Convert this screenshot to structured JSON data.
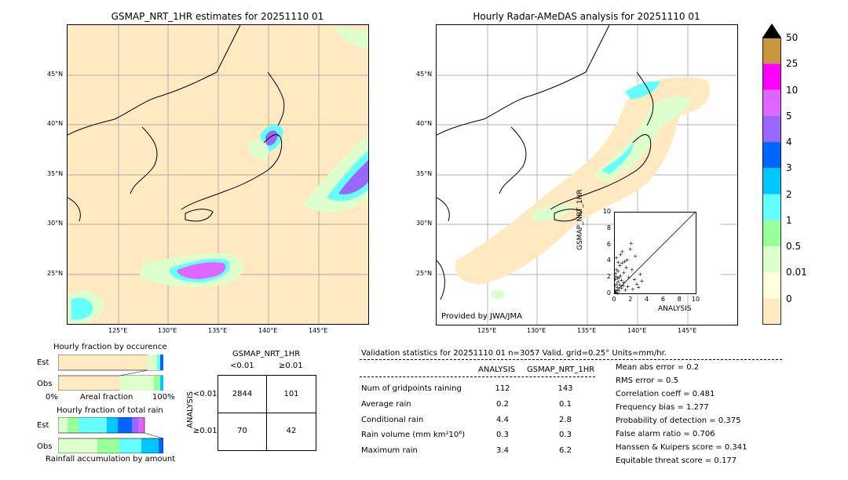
{
  "left_map": {
    "title": "GSMAP_NRT_1HR estimates for 20251110 01",
    "lat_labels": [
      "45°N",
      "40°N",
      "35°N",
      "30°N",
      "25°N"
    ],
    "lon_labels": [
      "125°E",
      "130°E",
      "135°E",
      "140°E",
      "145°E"
    ]
  },
  "right_map": {
    "title": "Hourly Radar-AMeDAS analysis for 20251110 01",
    "lat_labels": [
      "45°N",
      "40°N",
      "35°N",
      "30°N",
      "25°N"
    ],
    "lon_labels": [
      "125°E",
      "130°E",
      "135°E",
      "140°E",
      "145°E"
    ],
    "credit": "Provided by JWA/JMA"
  },
  "colorbar": {
    "labels": [
      "50",
      "25",
      "10",
      "5",
      "4",
      "3",
      "2",
      "1",
      "0.5",
      "0.01",
      "0"
    ],
    "colors": [
      "#c8963c",
      "#ff00ff",
      "#dd66ff",
      "#9966ff",
      "#0066ff",
      "#00c8ff",
      "#66ffff",
      "#99ff99",
      "#ddffcc",
      "#ffffdd",
      "#ffe9c0"
    ]
  },
  "occurrence": {
    "title": "Hourly fraction by occurence",
    "row_est": "Est",
    "row_obs": "Obs",
    "axis_left": "0%",
    "axis_mid": "Areal fraction",
    "axis_right": "100%"
  },
  "total_rain": {
    "title": "Hourly fraction of total rain",
    "row_est": "Est",
    "row_obs": "Obs",
    "footer": "Rainfall accumulation by amount"
  },
  "contingency": {
    "header": "GSMAP_NRT_1HR",
    "col_lt": "<0.01",
    "col_ge": "≥0.01",
    "row_axis": "ANALYSIS",
    "row_lt": "<0.01",
    "row_ge": "≥0.01",
    "c11": "2844",
    "c12": "101",
    "c21": "70",
    "c22": "42"
  },
  "validation": {
    "header": "Validation statistics for 20251110 01  n=3057 Valid. grid=0.25° Units=mm/hr.",
    "col_analysis": "ANALYSIS",
    "col_gsmap": "GSMAP_NRT_1HR",
    "rows": [
      {
        "label": "Num of gridpoints raining",
        "analysis": "112",
        "gsmap": "143"
      },
      {
        "label": "Average rain",
        "analysis": "0.2",
        "gsmap": "0.1"
      },
      {
        "label": "Conditional rain",
        "analysis": "4.4",
        "gsmap": "2.8"
      },
      {
        "label": "Rain volume (mm km²10⁶)",
        "analysis": "0.3",
        "gsmap": "0.3"
      },
      {
        "label": "Maximum rain",
        "analysis": "3.4",
        "gsmap": "6.2"
      }
    ],
    "scores": [
      "Mean abs error =    0.2",
      "RMS error =    0.5",
      "Correlation coeff =  0.481",
      "Frequency bias =  1.277",
      "Probability of detection =  0.375",
      "False alarm ratio =  0.706",
      "Hanssen & Kuipers score =  0.341",
      "Equitable threat score =  0.177"
    ]
  },
  "chart_data": {
    "type": "scatter",
    "xlabel": "ANALYSIS",
    "ylabel": "GSMAP_NRT_1HR",
    "xlim": [
      0,
      10
    ],
    "ylim": [
      0,
      10
    ],
    "xticks": [
      "0",
      "2",
      "4",
      "6",
      "8",
      "10"
    ],
    "yticks": [
      "0",
      "2",
      "4",
      "6",
      "8",
      "10"
    ],
    "points": [
      [
        0.1,
        0.3
      ],
      [
        0.2,
        0.5
      ],
      [
        0.3,
        1.2
      ],
      [
        0.4,
        0.8
      ],
      [
        0.5,
        1.5
      ],
      [
        0.6,
        2.0
      ],
      [
        0.2,
        2.5
      ],
      [
        0.3,
        3.0
      ],
      [
        0.5,
        2.8
      ],
      [
        0.7,
        3.5
      ],
      [
        0.8,
        2.2
      ],
      [
        1.0,
        3.8
      ],
      [
        1.1,
        1.0
      ],
      [
        1.2,
        2.6
      ],
      [
        1.3,
        4.0
      ],
      [
        1.5,
        3.2
      ],
      [
        1.6,
        4.2
      ],
      [
        1.8,
        2.0
      ],
      [
        2.0,
        5.5
      ],
      [
        2.1,
        6.2
      ],
      [
        2.2,
        3.0
      ],
      [
        2.5,
        1.8
      ],
      [
        2.6,
        4.6
      ],
      [
        2.8,
        1.2
      ],
      [
        3.0,
        0.8
      ],
      [
        3.2,
        2.4
      ],
      [
        3.4,
        1.6
      ],
      [
        0.1,
        1.0
      ],
      [
        0.2,
        0.2
      ],
      [
        0.4,
        0.1
      ],
      [
        0.6,
        0.4
      ],
      [
        0.9,
        0.7
      ],
      [
        1.4,
        0.5
      ],
      [
        1.7,
        0.9
      ],
      [
        0.3,
        4.4
      ],
      [
        0.5,
        3.9
      ],
      [
        0.8,
        4.8
      ],
      [
        1.0,
        5.2
      ],
      [
        0.15,
        1.8
      ],
      [
        0.25,
        2.1
      ],
      [
        0.45,
        1.9
      ],
      [
        0.7,
        1.1
      ],
      [
        0.9,
        1.7
      ],
      [
        1.2,
        1.4
      ],
      [
        2.3,
        0.6
      ]
    ]
  }
}
